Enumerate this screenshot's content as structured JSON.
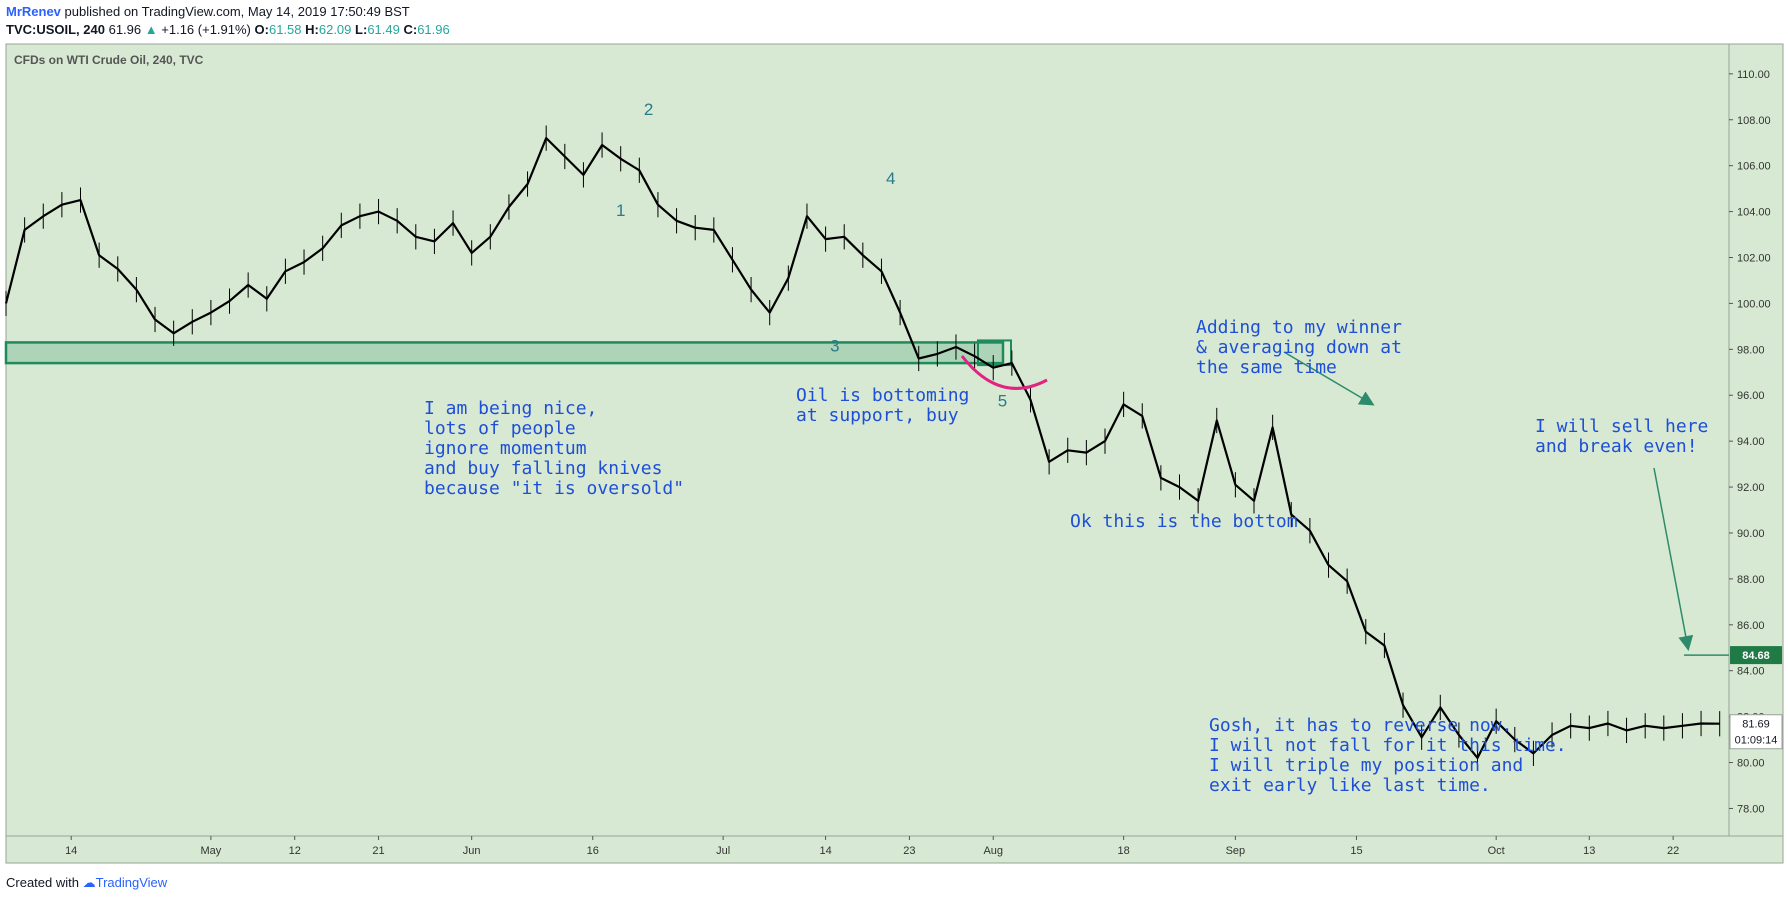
{
  "header": {
    "author": "MrRenev",
    "published_text": "published on TradingView.com, May 14, 2019 17:50:49 BST",
    "symbol": "TVC:USOIL, 240",
    "last": "61.96",
    "change": "+1.16 (+1.91%)",
    "open_label": "O:",
    "open": "61.58",
    "high_label": "H:",
    "high": "62.09",
    "low_label": "L:",
    "low": "61.49",
    "close_label": "C:",
    "close": "61.96"
  },
  "footer": {
    "created_with": "Created with",
    "brand": "TradingView"
  },
  "colors": {
    "background": "#d7e9d3",
    "candles": "#000000",
    "support_zone": "#1f8a5c",
    "annotation_text": "#1e4fd6",
    "wave_labels": "#2a7a8a",
    "arrows": "#2e8b6a",
    "curve": "#e0247f"
  },
  "chart_data": {
    "type": "line",
    "title": "CFDs on WTI Crude Oil, 240, TVC",
    "ylim": [
      76.8,
      111.3
    ],
    "xlim": [
      0,
      185
    ],
    "y_ticks": [
      "110.00",
      "108.00",
      "106.00",
      "104.00",
      "102.00",
      "100.00",
      "98.00",
      "96.00",
      "94.00",
      "92.00",
      "90.00",
      "88.00",
      "86.00",
      "84.00",
      "82.00",
      "80.00",
      "78.00"
    ],
    "x_ticks": [
      {
        "label": "14",
        "x": 7
      },
      {
        "label": "May",
        "x": 22
      },
      {
        "label": "12",
        "x": 31
      },
      {
        "label": "21",
        "x": 40
      },
      {
        "label": "Jun",
        "x": 50
      },
      {
        "label": "16",
        "x": 63
      },
      {
        "label": "Jul",
        "x": 77
      },
      {
        "label": "14",
        "x": 88
      },
      {
        "label": "23",
        "x": 97
      },
      {
        "label": "Aug",
        "x": 106
      },
      {
        "label": "18",
        "x": 120
      },
      {
        "label": "Sep",
        "x": 132
      },
      {
        "label": "15",
        "x": 145
      },
      {
        "label": "Oct",
        "x": 160
      },
      {
        "label": "13",
        "x": 170
      },
      {
        "label": "22",
        "x": 179
      }
    ],
    "series": [
      {
        "x": [
          0,
          2,
          4,
          6,
          8,
          10,
          12,
          14,
          16,
          18,
          20,
          22,
          24,
          26,
          28,
          30,
          32,
          34,
          36,
          38,
          40,
          42,
          44,
          46,
          48,
          50,
          52,
          54,
          56,
          58,
          60,
          62,
          64,
          66,
          68,
          70,
          72,
          74,
          76,
          78,
          80,
          82,
          84,
          86,
          88,
          90,
          92,
          94,
          96,
          98,
          100,
          102,
          104,
          106,
          108,
          110,
          112,
          114,
          116,
          118,
          120,
          122,
          124,
          126,
          128,
          130,
          132,
          134,
          136,
          138,
          140,
          142,
          144,
          146,
          148,
          150,
          152,
          154,
          156,
          158,
          160,
          162,
          164,
          166,
          168,
          170,
          172,
          174,
          176,
          178,
          180,
          182,
          184
        ],
        "y": [
          100,
          103.2,
          103.8,
          104.3,
          104.5,
          102.1,
          101.5,
          100.6,
          99.3,
          98.7,
          99.2,
          99.6,
          100.1,
          100.8,
          100.2,
          101.4,
          101.8,
          102.4,
          103.4,
          103.8,
          104.0,
          103.6,
          102.9,
          102.7,
          103.5,
          102.2,
          102.9,
          104.2,
          105.2,
          107.2,
          106.4,
          105.6,
          106.9,
          106.3,
          105.8,
          104.3,
          103.6,
          103.3,
          103.2,
          101.9,
          100.6,
          99.6,
          101.1,
          103.8,
          102.8,
          102.9,
          102.1,
          101.4,
          99.6,
          97.6,
          97.8,
          98.1,
          97.7,
          97.2,
          97.4,
          95.8,
          93.1,
          93.6,
          93.5,
          94.0,
          95.6,
          95.1,
          92.4,
          92.0,
          91.4,
          94.9,
          92.1,
          91.4,
          94.6,
          90.8,
          90.1,
          88.6,
          87.9,
          85.7,
          85.1,
          82.5,
          81.1,
          82.4,
          81.2,
          80.2,
          81.8,
          81.0,
          80.4,
          81.2,
          81.6,
          81.5,
          81.7,
          81.4,
          81.6,
          81.5,
          81.6,
          81.7,
          81.69
        ]
      }
    ],
    "support_zone": {
      "low": 97.4,
      "high": 98.3
    },
    "current_price_label": "81.69",
    "countdown_label": "01:09:14",
    "marker_price_label": "84.68",
    "wave_labels": [
      {
        "text": "1",
        "x": 66,
        "y": 103.8
      },
      {
        "text": "2",
        "x": 69,
        "y": 108.2
      },
      {
        "text": "3",
        "x": 89,
        "y": 97.9
      },
      {
        "text": "4",
        "x": 95,
        "y": 105.2
      },
      {
        "text": "5",
        "x": 107,
        "y": 95.5
      }
    ]
  },
  "annotations": [
    {
      "id": "falling-knives",
      "text": "I am being nice,\nlots of people\nignore momentum\nand buy falling knives\nbecause \"it is oversold\""
    },
    {
      "id": "bottoming",
      "text": "Oil is bottoming\nat support, buy"
    },
    {
      "id": "the-bottom",
      "text": "Ok this is the bottom"
    },
    {
      "id": "adding",
      "text": "Adding to my winner\n& averaging down at\nthe same time"
    },
    {
      "id": "sell-here",
      "text": "I will sell here\nand break even!"
    },
    {
      "id": "gosh",
      "text": "Gosh, it has to reverse now.\nI will not fall for it this time.\nI will triple my position and\nexit early like last time."
    }
  ]
}
